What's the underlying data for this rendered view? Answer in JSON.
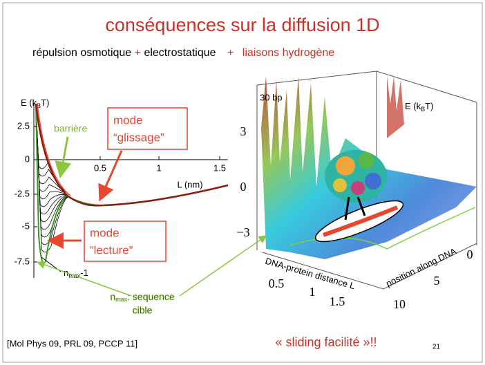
{
  "title": "conséquences sur la diffusion 1D",
  "subtitle": {
    "part1": "répulsion osmotique",
    "plus1": "+",
    "part2": "electrostatique",
    "plus2": "+",
    "part3": "liaisons hydrogène"
  },
  "left_plot": {
    "y_label": {
      "main": "E (k",
      "sub": "B",
      "end": "T)"
    },
    "yticks": [
      "2.5",
      "0",
      "-2.5",
      "-5",
      "-7.5"
    ],
    "xticks": [
      "0.5",
      "1",
      "1.5"
    ],
    "x_label": "L (nm)",
    "barrier_label": "barrière",
    "mode_glissage": {
      "line1": "mode",
      "line2": "“glissage”"
    },
    "mode_lecture": {
      "line1": "mode",
      "line2": "“lecture”"
    },
    "nmax_label": {
      "main": "n",
      "sub": "max",
      "end": "-1"
    }
  },
  "right_plot": {
    "bp_label": "30 bp",
    "energy_label": {
      "main": "E (k",
      "sub": "B",
      "end": "T)"
    },
    "zticks": [
      "3",
      "0",
      "−3"
    ],
    "x_axis_label": "DNA-protein distance L",
    "xticks": [
      "0.5",
      "1",
      "1.5"
    ],
    "y_axis_label": "position along DNA",
    "yticks": [
      "0",
      "5",
      "10"
    ]
  },
  "sequence_note": {
    "main": "n",
    "sub": "max",
    "rest": ": sequence",
    "line2": "cible"
  },
  "tagline": "« sliding facilité »!!",
  "reference": "[Mol Phys 09, PRL 09, PCCP 11]",
  "page_number": "21"
}
